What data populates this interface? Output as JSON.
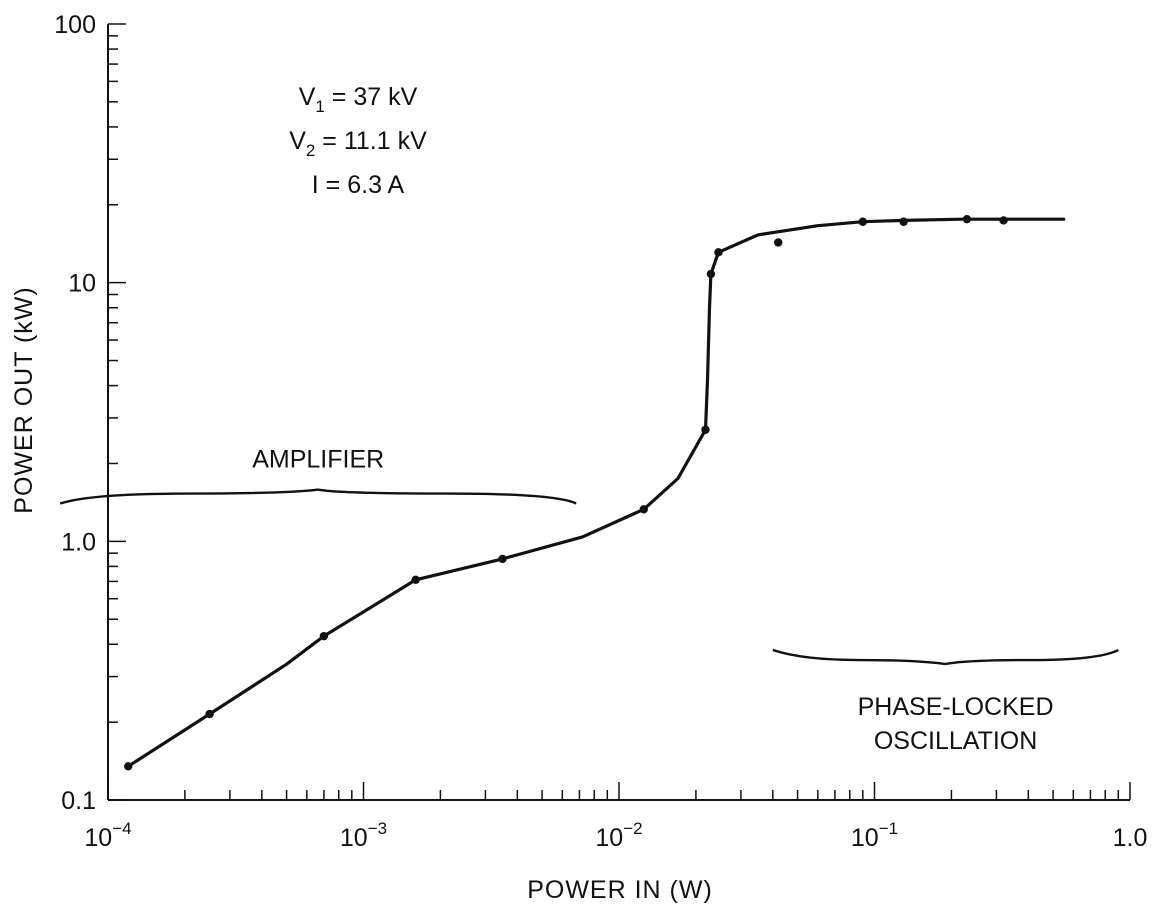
{
  "chart_data": {
    "type": "line",
    "xlabel": "POWER IN (W)",
    "ylabel": "POWER OUT (kW)",
    "x_scale": "log",
    "y_scale": "log",
    "xlim": [
      0.0001,
      1.0
    ],
    "ylim": [
      0.1,
      100
    ],
    "grid": false,
    "x_ticks": [
      {
        "value": 0.0001,
        "base": "10",
        "exp": "−4"
      },
      {
        "value": 0.001,
        "base": "10",
        "exp": "−3"
      },
      {
        "value": 0.01,
        "base": "10",
        "exp": "−2"
      },
      {
        "value": 0.1,
        "base": "10",
        "exp": "−1"
      },
      {
        "value": 1.0,
        "base": "1.0",
        "exp": ""
      }
    ],
    "y_ticks": [
      {
        "value": 0.1,
        "label": "0.1"
      },
      {
        "value": 1.0,
        "label": "1.0"
      },
      {
        "value": 10,
        "label": "10"
      },
      {
        "value": 100,
        "label": "100"
      }
    ],
    "series": [
      {
        "curve": [
          [
            0.00012,
            0.135
          ],
          [
            0.00025,
            0.215
          ],
          [
            0.0005,
            0.335
          ],
          [
            0.0007,
            0.43
          ],
          [
            0.0016,
            0.71
          ],
          [
            0.0018,
            0.73
          ],
          [
            0.0035,
            0.855
          ],
          [
            0.0072,
            1.04
          ],
          [
            0.0125,
            1.33
          ],
          [
            0.017,
            1.75
          ],
          [
            0.0218,
            2.7
          ],
          [
            0.0222,
            4.2
          ],
          [
            0.0226,
            8.0
          ],
          [
            0.0229,
            10.8
          ],
          [
            0.0245,
            13.1
          ],
          [
            0.035,
            15.3
          ],
          [
            0.06,
            16.6
          ],
          [
            0.09,
            17.2
          ],
          [
            0.13,
            17.4
          ],
          [
            0.22,
            17.6
          ],
          [
            0.55,
            17.6
          ]
        ],
        "points": [
          [
            0.00012,
            0.135
          ],
          [
            0.00025,
            0.215
          ],
          [
            0.0007,
            0.43
          ],
          [
            0.0016,
            0.71
          ],
          [
            0.0035,
            0.855
          ],
          [
            0.0125,
            1.33
          ],
          [
            0.0218,
            2.7
          ],
          [
            0.0229,
            10.8
          ],
          [
            0.0245,
            13.1
          ],
          [
            0.042,
            14.3
          ],
          [
            0.09,
            17.2
          ],
          [
            0.13,
            17.2
          ],
          [
            0.23,
            17.6
          ],
          [
            0.32,
            17.4
          ]
        ]
      }
    ],
    "annotations": {
      "params": [
        {
          "main": "V",
          "sub": "1",
          "rest": " = 37 kV"
        },
        {
          "main": "V",
          "sub": "2",
          "rest": " = 11.1 kV"
        },
        {
          "main": "I = 6.3 A",
          "sub": "",
          "rest": ""
        }
      ],
      "regions": [
        {
          "lines": [
            "AMPLIFIER"
          ],
          "brace_from": 6.5e-05,
          "brace_to": 0.0068,
          "brace_level": 1.4,
          "brace_direction": "up"
        },
        {
          "lines": [
            "PHASE-LOCKED",
            "OSCILLATION"
          ],
          "brace_from": 0.04,
          "brace_to": 0.9,
          "brace_level": 0.38,
          "brace_direction": "down"
        }
      ]
    }
  }
}
